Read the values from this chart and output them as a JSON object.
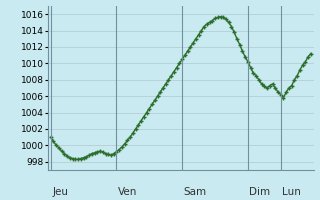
{
  "background_color": "#c8eaf0",
  "line_color": "#2d6e2d",
  "marker": "+",
  "marker_size": 3,
  "line_width": 1.0,
  "ylim": [
    997,
    1017
  ],
  "yticks": [
    998,
    1000,
    1002,
    1004,
    1006,
    1008,
    1010,
    1012,
    1014,
    1016
  ],
  "ytick_fontsize": 6.5,
  "xtick_fontsize": 7.5,
  "grid_color": "#b0c8d0",
  "day_labels": [
    "Jeu",
    "Ven",
    "Sam",
    "Dim",
    "Lun"
  ],
  "day_positions": [
    0.5,
    24.5,
    48.5,
    72.5,
    84.5
  ],
  "vline_positions": [
    0,
    24,
    48,
    72,
    84
  ],
  "pressure_values": [
    1001.0,
    1000.5,
    1000.0,
    999.7,
    999.3,
    999.0,
    998.7,
    998.5,
    998.4,
    998.3,
    998.3,
    998.4,
    998.5,
    998.6,
    998.8,
    999.0,
    999.1,
    999.2,
    999.3,
    999.2,
    999.0,
    998.9,
    998.8,
    999.0,
    999.2,
    999.5,
    999.8,
    1000.2,
    1000.6,
    1001.0,
    1001.5,
    1002.0,
    1002.5,
    1003.0,
    1003.5,
    1004.0,
    1004.5,
    1005.0,
    1005.5,
    1006.0,
    1006.5,
    1007.0,
    1007.5,
    1008.0,
    1008.5,
    1009.0,
    1009.5,
    1010.0,
    1010.5,
    1011.0,
    1011.5,
    1012.0,
    1012.5,
    1013.0,
    1013.5,
    1014.0,
    1014.5,
    1014.8,
    1015.0,
    1015.2,
    1015.5,
    1015.6,
    1015.7,
    1015.6,
    1015.4,
    1015.0,
    1014.5,
    1013.8,
    1013.0,
    1012.3,
    1011.5,
    1010.8,
    1010.2,
    1009.5,
    1008.8,
    1008.5,
    1008.0,
    1007.5,
    1007.2,
    1007.0,
    1007.3,
    1007.5,
    1007.0,
    1006.5,
    1006.2,
    1005.8,
    1006.5,
    1007.0,
    1007.3,
    1008.0,
    1008.5,
    1009.2,
    1009.8,
    1010.2,
    1010.8,
    1011.2
  ]
}
